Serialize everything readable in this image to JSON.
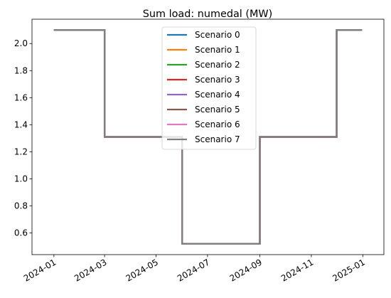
{
  "chart_data": {
    "type": "line",
    "title": "Sum load: numedal (MW)",
    "xlabel": "",
    "ylabel": "",
    "x_ticks": [
      "2024-01",
      "2024-03",
      "2024-05",
      "2024-07",
      "2024-09",
      "2024-11",
      "2025-01"
    ],
    "y_ticks": [
      "0.6",
      "0.8",
      "1.0",
      "1.2",
      "1.4",
      "1.6",
      "1.8",
      "2.0"
    ],
    "xlim": [
      "2023-12-06",
      "2025-01-26"
    ],
    "ylim": [
      0.44,
      2.18
    ],
    "step": "post",
    "grid": false,
    "legend_position": "top-center",
    "x": [
      "2024-01-01",
      "2024-03-01",
      "2024-06-01",
      "2024-09-01",
      "2024-12-01",
      "2024-12-31"
    ],
    "series": [
      {
        "name": "Scenario 0",
        "color": "#1f77b4",
        "values": [
          2.1,
          1.31,
          0.52,
          1.31,
          2.1,
          2.1
        ]
      },
      {
        "name": "Scenario 1",
        "color": "#ff7f0e",
        "values": [
          2.1,
          1.31,
          0.52,
          1.31,
          2.1,
          2.1
        ]
      },
      {
        "name": "Scenario 2",
        "color": "#2ca02c",
        "values": [
          2.1,
          1.31,
          0.52,
          1.31,
          2.1,
          2.1
        ]
      },
      {
        "name": "Scenario 3",
        "color": "#d62728",
        "values": [
          2.1,
          1.31,
          0.52,
          1.31,
          2.1,
          2.1
        ]
      },
      {
        "name": "Scenario 4",
        "color": "#9467bd",
        "values": [
          2.1,
          1.31,
          0.52,
          1.31,
          2.1,
          2.1
        ]
      },
      {
        "name": "Scenario 5",
        "color": "#8c564b",
        "values": [
          2.1,
          1.31,
          0.52,
          1.31,
          2.1,
          2.1
        ]
      },
      {
        "name": "Scenario 6",
        "color": "#e377c2",
        "values": [
          2.1,
          1.31,
          0.52,
          1.31,
          2.1,
          2.1
        ]
      },
      {
        "name": "Scenario 7",
        "color": "#7f7f7f",
        "values": [
          2.1,
          1.31,
          0.52,
          1.31,
          2.1,
          2.1
        ]
      }
    ]
  }
}
